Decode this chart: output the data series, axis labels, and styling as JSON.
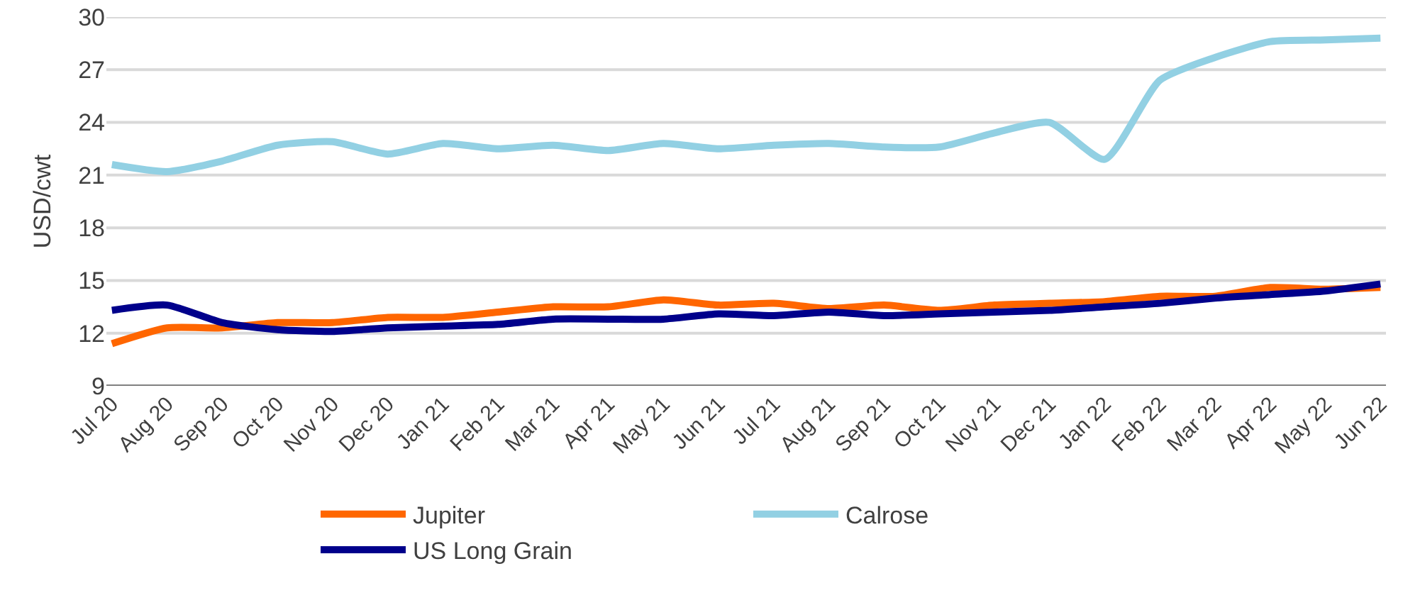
{
  "chart_data": {
    "type": "line",
    "ylabel": "USD/cwt",
    "categories": [
      "Jul 20",
      "Aug 20",
      "Sep 20",
      "Oct 20",
      "Nov 20",
      "Dec 20",
      "Jan 21",
      "Feb 21",
      "Mar 21",
      "Apr 21",
      "May 21",
      "Jun 21",
      "Jul 21",
      "Aug 21",
      "Sep 21",
      "Oct 21",
      "Nov 21",
      "Dec 21",
      "Jan 22",
      "Feb 22",
      "Mar 22",
      "Apr 22",
      "May 22",
      "Jun 22"
    ],
    "series": [
      {
        "name": "Jupiter",
        "color": "#ff6600",
        "values": [
          11.4,
          12.3,
          12.3,
          12.6,
          12.6,
          12.9,
          12.9,
          13.2,
          13.5,
          13.5,
          13.9,
          13.6,
          13.7,
          13.4,
          13.6,
          13.3,
          13.6,
          13.7,
          13.8,
          14.1,
          14.1,
          14.6,
          14.5,
          14.6
        ]
      },
      {
        "name": "Calrose",
        "color": "#92d0e3",
        "values": [
          21.6,
          21.2,
          21.8,
          22.7,
          22.9,
          22.2,
          22.8,
          22.5,
          22.7,
          22.4,
          22.8,
          22.5,
          22.7,
          22.8,
          22.6,
          22.6,
          23.4,
          24.0,
          21.9,
          26.4,
          27.7,
          28.6,
          28.7,
          28.8
        ]
      },
      {
        "name": "US Long Grain",
        "color": "#00008b",
        "values": [
          13.3,
          13.6,
          12.6,
          12.2,
          12.1,
          12.3,
          12.4,
          12.5,
          12.8,
          12.8,
          12.8,
          13.1,
          13.0,
          13.2,
          13.0,
          13.1,
          13.2,
          13.3,
          13.5,
          13.7,
          14.0,
          14.2,
          14.4,
          14.8
        ]
      }
    ],
    "ylim": [
      9,
      30
    ],
    "yticks": [
      9,
      12,
      15,
      18,
      21,
      24,
      27,
      30
    ],
    "grid": "y",
    "legend": "bottom",
    "marker": "none",
    "line_style": "solid"
  }
}
